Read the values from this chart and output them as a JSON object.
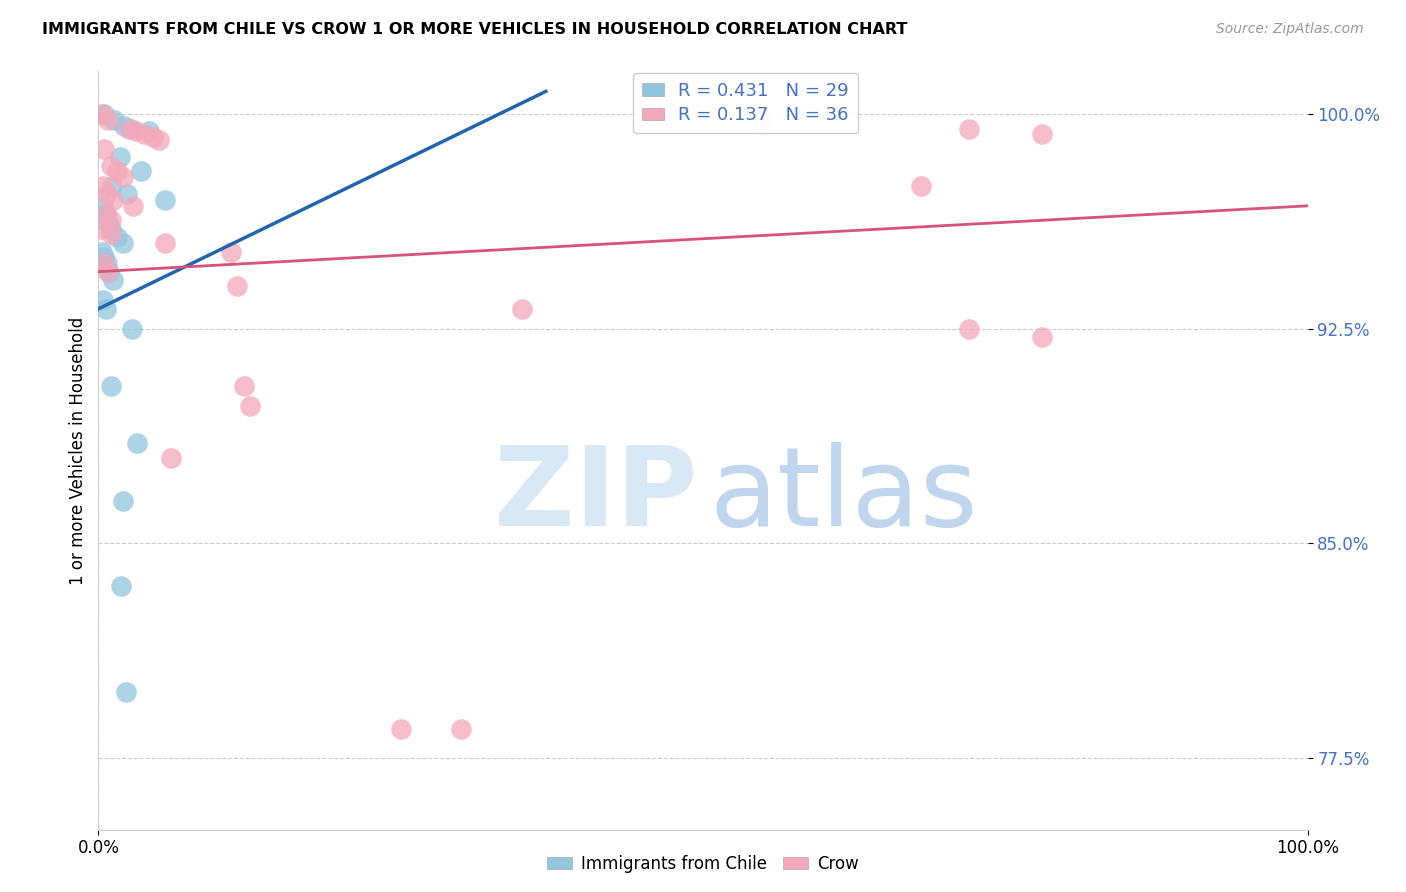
{
  "title": "IMMIGRANTS FROM CHILE VS CROW 1 OR MORE VEHICLES IN HOUSEHOLD CORRELATION CHART",
  "source": "Source: ZipAtlas.com",
  "ylabel": "1 or more Vehicles in Household",
  "xlim": [
    0,
    100
  ],
  "ylim": [
    75.0,
    101.5
  ],
  "yticks": [
    77.5,
    85.0,
    92.5,
    100.0
  ],
  "blue_label": "Immigrants from Chile",
  "pink_label": "Crow",
  "blue_R": "R = 0.431",
  "blue_N": "N = 29",
  "pink_R": "R = 0.137",
  "pink_N": "N = 36",
  "blue_color": "#92C5DE",
  "pink_color": "#F4A7B9",
  "blue_line_color": "#2166AC",
  "pink_line_color": "#D6537A",
  "blue_points": [
    [
      0.5,
      100.0
    ],
    [
      1.3,
      99.8
    ],
    [
      2.1,
      99.6
    ],
    [
      2.7,
      99.5
    ],
    [
      4.2,
      99.4
    ],
    [
      1.8,
      98.5
    ],
    [
      3.5,
      98.0
    ],
    [
      1.1,
      97.5
    ],
    [
      2.4,
      97.2
    ],
    [
      5.5,
      97.0
    ],
    [
      0.4,
      96.8
    ],
    [
      0.6,
      96.5
    ],
    [
      0.8,
      96.2
    ],
    [
      1.0,
      96.0
    ],
    [
      1.5,
      95.7
    ],
    [
      2.0,
      95.5
    ],
    [
      0.3,
      95.2
    ],
    [
      0.5,
      95.0
    ],
    [
      0.7,
      94.8
    ],
    [
      0.9,
      94.5
    ],
    [
      1.2,
      94.2
    ],
    [
      0.4,
      93.5
    ],
    [
      0.6,
      93.2
    ],
    [
      2.8,
      92.5
    ],
    [
      1.0,
      90.5
    ],
    [
      3.2,
      88.5
    ],
    [
      2.0,
      86.5
    ],
    [
      1.9,
      83.5
    ],
    [
      2.3,
      79.8
    ]
  ],
  "pink_points": [
    [
      0.3,
      100.0
    ],
    [
      0.8,
      99.8
    ],
    [
      2.5,
      99.5
    ],
    [
      3.1,
      99.4
    ],
    [
      3.8,
      99.3
    ],
    [
      4.5,
      99.2
    ],
    [
      5.0,
      99.1
    ],
    [
      0.5,
      98.8
    ],
    [
      1.0,
      98.2
    ],
    [
      1.5,
      98.0
    ],
    [
      2.0,
      97.8
    ],
    [
      0.4,
      97.5
    ],
    [
      0.7,
      97.2
    ],
    [
      1.2,
      97.0
    ],
    [
      2.9,
      96.8
    ],
    [
      0.6,
      96.5
    ],
    [
      1.0,
      96.3
    ],
    [
      0.3,
      96.0
    ],
    [
      1.0,
      95.8
    ],
    [
      5.5,
      95.5
    ],
    [
      11.0,
      95.2
    ],
    [
      0.5,
      94.8
    ],
    [
      0.8,
      94.5
    ],
    [
      11.5,
      94.0
    ],
    [
      55.0,
      99.8
    ],
    [
      72.0,
      99.5
    ],
    [
      78.0,
      99.3
    ],
    [
      68.0,
      97.5
    ],
    [
      72.0,
      92.5
    ],
    [
      78.0,
      92.2
    ],
    [
      35.0,
      93.2
    ],
    [
      25.0,
      78.5
    ],
    [
      12.0,
      90.5
    ],
    [
      12.5,
      89.8
    ],
    [
      6.0,
      88.0
    ],
    [
      30.0,
      78.5
    ]
  ],
  "blue_trendline_x": [
    0,
    37
  ],
  "blue_trendline_y": [
    93.2,
    100.8
  ],
  "pink_trendline_x": [
    0,
    100
  ],
  "pink_trendline_y": [
    94.5,
    96.8
  ],
  "watermark_zip_color": "#D8E8F5",
  "watermark_atlas_color": "#C0D5EE",
  "grid_color": "#CCCCCC",
  "tick_color_y": "#4472C4",
  "title_fontsize": 11.5,
  "source_fontsize": 10,
  "label_fontsize": 12,
  "legend_fontsize": 13
}
